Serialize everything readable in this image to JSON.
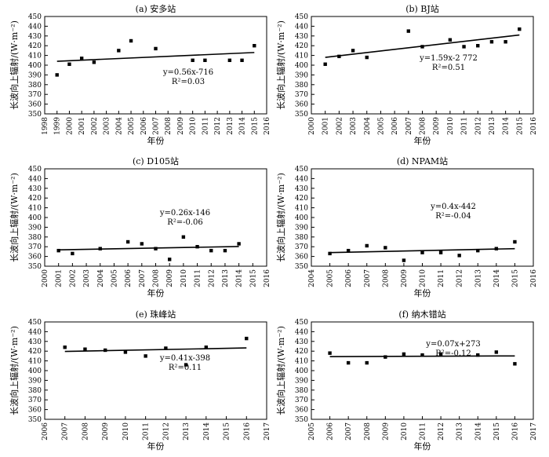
{
  "chart_data": [
    {
      "type": "scatter",
      "title": "(a) 安多站",
      "xlabel": "年份",
      "ylabel": "长波向上辐射/(W·m⁻²)",
      "xlim": [
        1998,
        2016
      ],
      "ylim": [
        350,
        450
      ],
      "xticks": [
        "1998",
        "1999",
        "2000",
        "2001",
        "2002",
        "2003",
        "2004",
        "2005",
        "2006",
        "2007",
        "2008",
        "2009",
        "2010",
        "2011",
        "2012",
        "2013",
        "2014",
        "2015",
        "2016"
      ],
      "yticks": [
        "350",
        "360",
        "370",
        "380",
        "390",
        "400",
        "410",
        "420",
        "430",
        "440",
        "450"
      ],
      "x": [
        1999,
        2000,
        2001,
        2002,
        2004,
        2005,
        2007,
        2010,
        2011,
        2013,
        2014,
        2015
      ],
      "y": [
        390,
        401,
        407,
        403,
        415,
        425,
        417,
        405,
        405,
        405,
        405,
        420
      ],
      "trend": {
        "x": [
          1999,
          2015
        ],
        "y": [
          404,
          413
        ]
      },
      "equation": "y=0.56x-716",
      "r2": "R²=0.03"
    },
    {
      "type": "scatter",
      "title": "(b) BJ站",
      "xlabel": "年份",
      "ylabel": "长波向上辐射/(W·m⁻²)",
      "xlim": [
        2000,
        2016
      ],
      "ylim": [
        350,
        450
      ],
      "xticks": [
        "2000",
        "2001",
        "2002",
        "2003",
        "2004",
        "2005",
        "2006",
        "2007",
        "2008",
        "2009",
        "2010",
        "2011",
        "2012",
        "2013",
        "2014",
        "2015",
        "2016"
      ],
      "yticks": [
        "350",
        "360",
        "370",
        "380",
        "390",
        "400",
        "410",
        "420",
        "430",
        "440",
        "450"
      ],
      "x": [
        2001,
        2002,
        2003,
        2004,
        2007,
        2008,
        2010,
        2011,
        2012,
        2013,
        2014,
        2015
      ],
      "y": [
        401,
        409,
        415,
        408,
        435,
        419,
        426,
        419,
        420,
        424,
        424,
        437
      ],
      "trend": {
        "x": [
          2001,
          2015
        ],
        "y": [
          408,
          431
        ]
      },
      "equation": "y=1.59x-2 772",
      "r2": "R²=0.51"
    },
    {
      "type": "scatter",
      "title": "(c) D105站",
      "xlabel": "年份",
      "ylabel": "长波向上辐射/(W·m⁻²)",
      "xlim": [
        2000,
        2016
      ],
      "ylim": [
        350,
        450
      ],
      "xticks": [
        "2000",
        "2001",
        "2002",
        "2003",
        "2004",
        "2005",
        "2006",
        "2007",
        "2008",
        "2009",
        "2010",
        "2011",
        "2012",
        "2013",
        "2014",
        "2015",
        "2016"
      ],
      "yticks": [
        "350",
        "360",
        "370",
        "380",
        "390",
        "400",
        "410",
        "420",
        "430",
        "440",
        "450"
      ],
      "x": [
        2001,
        2002,
        2004,
        2006,
        2007,
        2008,
        2009,
        2010,
        2011,
        2012,
        2013,
        2014
      ],
      "y": [
        366,
        363,
        368,
        375,
        373,
        368,
        357,
        380,
        370,
        366,
        366,
        373
      ],
      "trend": {
        "x": [
          2001,
          2014
        ],
        "y": [
          366.8,
          370.2
        ]
      },
      "equation": "y=0.26x-146",
      "r2": "R²=-0.06"
    },
    {
      "type": "scatter",
      "title": "(d) NPAM站",
      "xlabel": "年份",
      "ylabel": "长波向上辐射/(W·m⁻²)",
      "xlim": [
        2004,
        2016
      ],
      "ylim": [
        350,
        450
      ],
      "xticks": [
        "2004",
        "2005",
        "2006",
        "2007",
        "2008",
        "2009",
        "2010",
        "2011",
        "2012",
        "2013",
        "2014",
        "2015",
        "2016"
      ],
      "yticks": [
        "350",
        "360",
        "370",
        "380",
        "390",
        "400",
        "410",
        "420",
        "430",
        "440",
        "450"
      ],
      "x": [
        2005,
        2006,
        2007,
        2008,
        2009,
        2010,
        2011,
        2012,
        2013,
        2014,
        2015
      ],
      "y": [
        363,
        366,
        371,
        369,
        356,
        364,
        364,
        361,
        366,
        368,
        375
      ],
      "trend": {
        "x": [
          2005,
          2015
        ],
        "y": [
          364,
          368
        ]
      },
      "equation": "y=0.4x-442",
      "r2": "R²=-0.04"
    },
    {
      "type": "scatter",
      "title": "(e) 珠峰站",
      "xlabel": "年份",
      "ylabel": "长波向上辐射/(W·m⁻²)",
      "xlim": [
        2006,
        2017
      ],
      "ylim": [
        350,
        450
      ],
      "xticks": [
        "2006",
        "2007",
        "2008",
        "2009",
        "2010",
        "2011",
        "2012",
        "2013",
        "2014",
        "2015",
        "2016",
        "2017"
      ],
      "yticks": [
        "350",
        "360",
        "370",
        "380",
        "390",
        "400",
        "410",
        "420",
        "430",
        "440",
        "450"
      ],
      "x": [
        2007,
        2008,
        2009,
        2010,
        2011,
        2012,
        2013,
        2014,
        2016
      ],
      "y": [
        424,
        422,
        421,
        419,
        415,
        423,
        406,
        424,
        433
      ],
      "trend": {
        "x": [
          2007,
          2016
        ],
        "y": [
          419.7,
          423.3
        ]
      },
      "equation": "y=0.41x-398",
      "r2": "R²=0.11"
    },
    {
      "type": "scatter",
      "title": "(f) 纳木错站",
      "xlabel": "年份",
      "ylabel": "长波向上辐射/(W·m⁻²)",
      "xlim": [
        2005,
        2017
      ],
      "ylim": [
        350,
        450
      ],
      "xticks": [
        "2005",
        "2006",
        "2007",
        "2008",
        "2009",
        "2010",
        "2011",
        "2012",
        "2013",
        "2014",
        "2015",
        "2016",
        "2017"
      ],
      "yticks": [
        "350",
        "360",
        "370",
        "380",
        "390",
        "400",
        "410",
        "420",
        "430",
        "440",
        "450"
      ],
      "x": [
        2006,
        2007,
        2008,
        2009,
        2010,
        2011,
        2012,
        2014,
        2015,
        2016
      ],
      "y": [
        418,
        408,
        408,
        414,
        417,
        416,
        417,
        416,
        419,
        407
      ],
      "trend": {
        "x": [
          2006,
          2016
        ],
        "y": [
          414.4,
          415.1
        ]
      },
      "equation": "y=0.07x+273",
      "r2": "R²=-0.12"
    }
  ]
}
